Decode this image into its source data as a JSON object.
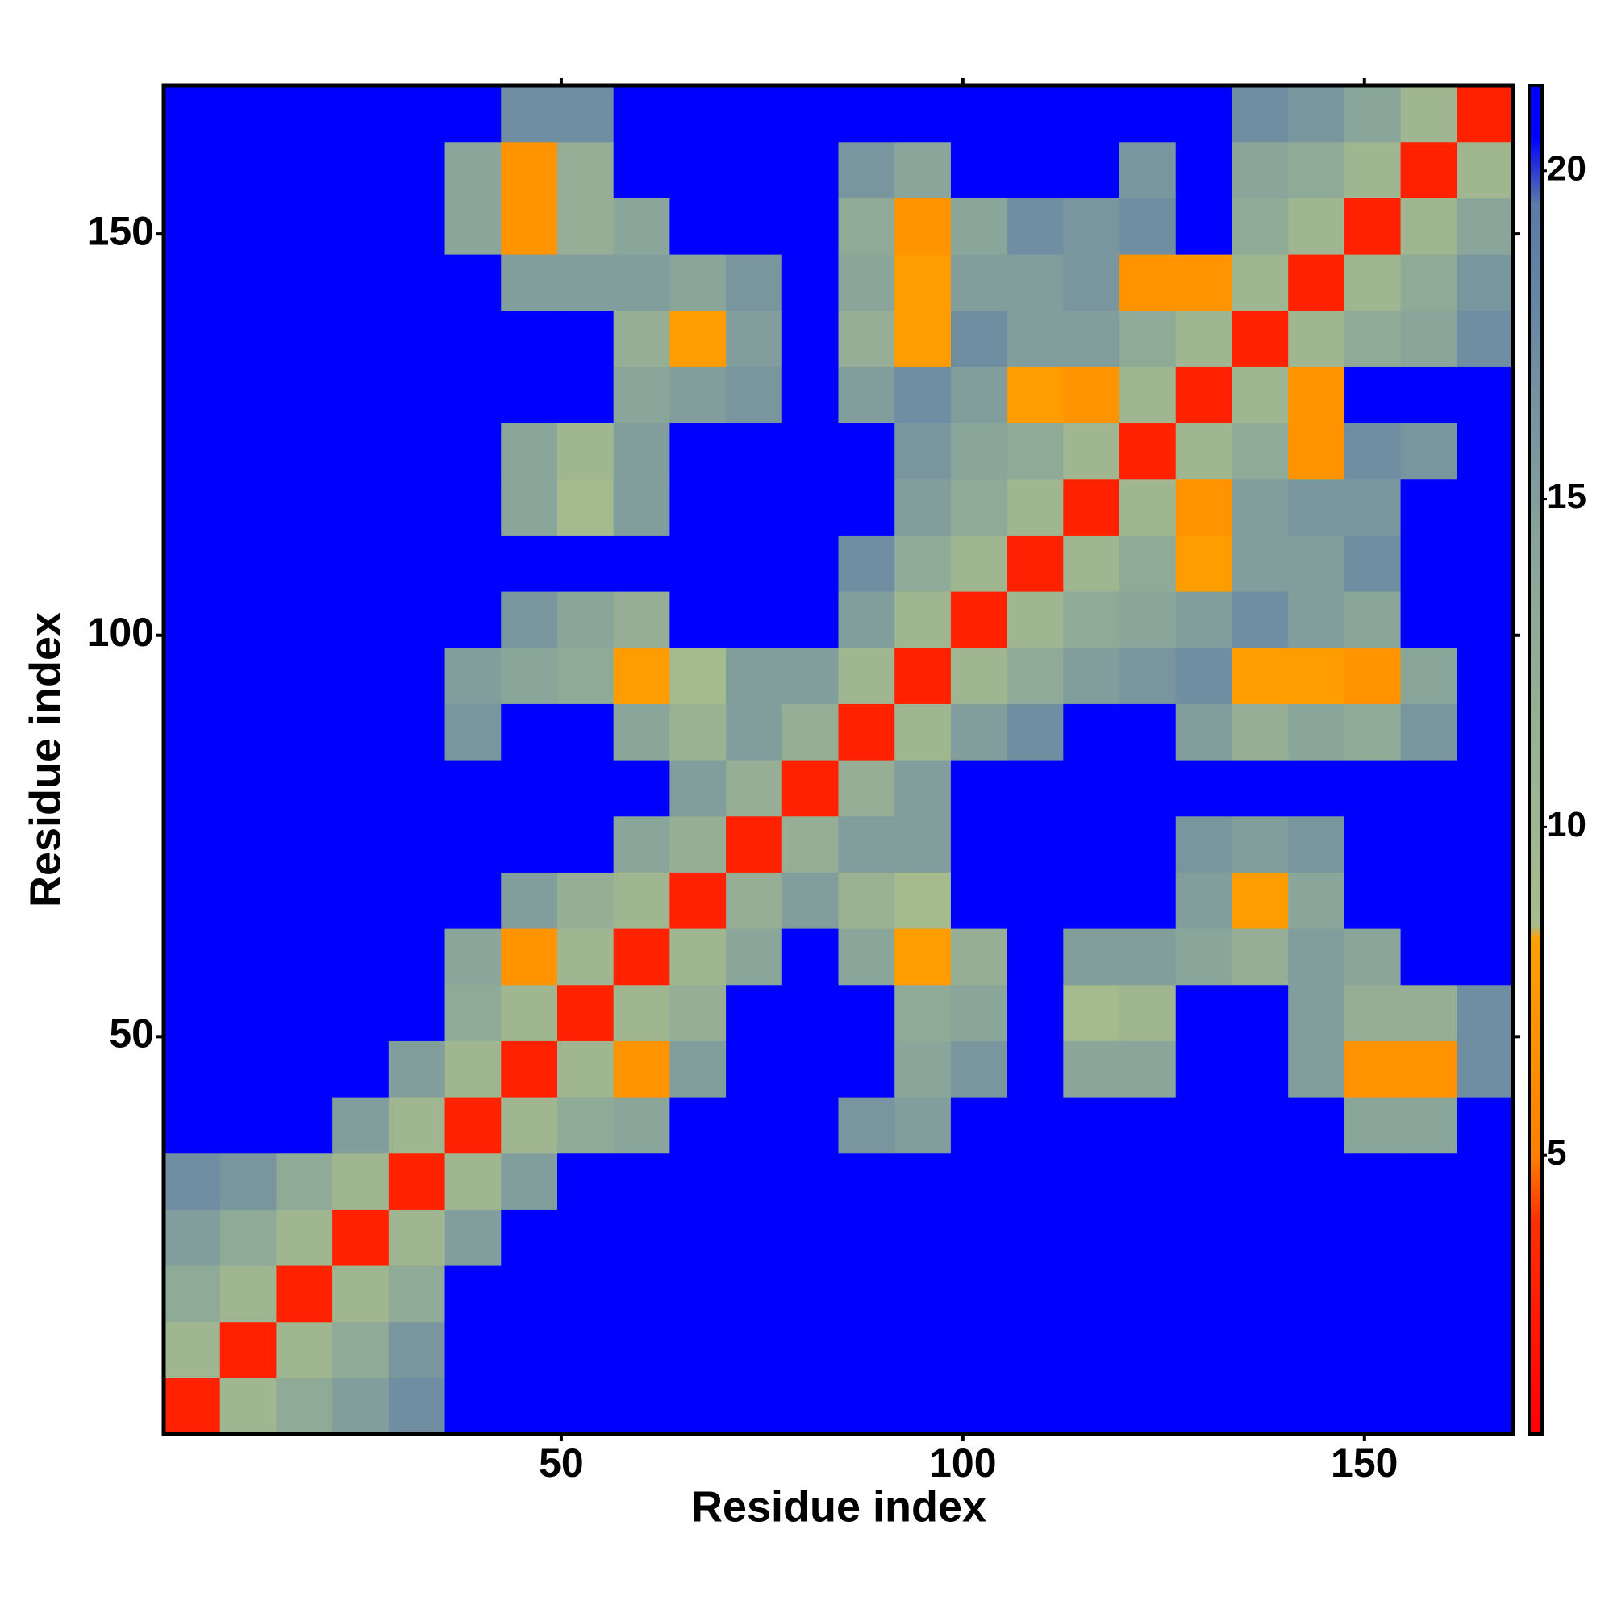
{
  "chart_data": {
    "type": "heatmap",
    "xlabel": "Residue index",
    "ylabel": "Residue index",
    "x": [
      4,
      11,
      18,
      25,
      32,
      39,
      46,
      53,
      60,
      67,
      74,
      81,
      88,
      95,
      102,
      109,
      116,
      123,
      130,
      137,
      144,
      151,
      158,
      165
    ],
    "y": [
      4,
      11,
      18,
      25,
      32,
      39,
      46,
      53,
      60,
      67,
      74,
      81,
      88,
      95,
      102,
      109,
      116,
      123,
      130,
      137,
      144,
      151,
      158,
      165
    ],
    "z": [
      [
        3,
        10,
        13,
        15,
        17,
        21,
        21,
        21,
        21,
        21,
        21,
        21,
        21,
        21,
        21,
        21,
        21,
        21,
        21,
        21,
        21,
        21,
        21,
        21
      ],
      [
        10,
        3,
        10,
        13,
        16,
        21,
        21,
        21,
        21,
        21,
        21,
        21,
        21,
        21,
        21,
        21,
        21,
        21,
        21,
        21,
        21,
        21,
        21,
        21
      ],
      [
        13,
        10,
        3,
        10,
        13,
        21,
        21,
        21,
        21,
        21,
        21,
        21,
        21,
        21,
        21,
        21,
        21,
        21,
        21,
        21,
        21,
        21,
        21,
        21
      ],
      [
        15,
        13,
        10,
        3,
        10,
        15,
        21,
        21,
        21,
        21,
        21,
        21,
        21,
        21,
        21,
        21,
        21,
        21,
        21,
        21,
        21,
        21,
        21,
        21
      ],
      [
        17,
        16,
        13,
        10,
        3,
        10,
        15,
        21,
        21,
        21,
        21,
        21,
        21,
        21,
        21,
        21,
        21,
        21,
        21,
        21,
        21,
        21,
        21,
        21
      ],
      [
        21,
        21,
        21,
        15,
        10,
        3,
        10,
        13,
        14,
        21,
        21,
        21,
        16,
        15,
        21,
        21,
        21,
        21,
        21,
        21,
        21,
        14,
        14,
        21
      ],
      [
        21,
        21,
        21,
        21,
        15,
        10,
        3,
        10,
        7,
        15,
        21,
        21,
        21,
        14,
        16,
        21,
        14,
        14,
        21,
        21,
        15,
        7,
        7,
        17
      ],
      [
        21,
        21,
        21,
        21,
        21,
        13,
        10,
        3,
        10,
        12,
        21,
        21,
        21,
        13,
        14,
        21,
        9,
        10,
        21,
        21,
        15,
        12,
        12,
        17
      ],
      [
        21,
        21,
        21,
        21,
        21,
        14,
        7,
        10,
        3,
        10,
        14,
        21,
        14,
        8,
        12,
        21,
        15,
        15,
        14,
        12,
        15,
        14,
        21,
        21
      ],
      [
        21,
        21,
        21,
        21,
        21,
        21,
        15,
        12,
        10,
        3,
        12,
        15,
        11,
        9,
        21,
        21,
        21,
        21,
        15,
        8,
        14,
        21,
        21,
        21
      ],
      [
        21,
        21,
        21,
        21,
        21,
        21,
        21,
        21,
        14,
        12,
        3,
        12,
        15,
        15,
        21,
        21,
        21,
        21,
        16,
        15,
        16,
        21,
        21,
        21
      ],
      [
        21,
        21,
        21,
        21,
        21,
        21,
        21,
        21,
        21,
        15,
        12,
        3,
        12,
        15,
        21,
        21,
        21,
        21,
        21,
        21,
        21,
        21,
        21,
        21
      ],
      [
        21,
        21,
        21,
        21,
        21,
        16,
        21,
        21,
        14,
        11,
        15,
        12,
        3,
        10,
        15,
        17,
        21,
        21,
        15,
        12,
        14,
        13,
        16,
        21
      ],
      [
        21,
        21,
        21,
        21,
        21,
        15,
        14,
        13,
        8,
        9,
        15,
        15,
        10,
        3,
        10,
        13,
        15,
        16,
        17,
        8,
        8,
        7,
        14,
        21
      ],
      [
        21,
        21,
        21,
        21,
        21,
        21,
        16,
        14,
        12,
        21,
        21,
        21,
        15,
        10,
        3,
        10,
        13,
        14,
        15,
        17,
        15,
        14,
        21,
        21
      ],
      [
        21,
        21,
        21,
        21,
        21,
        21,
        21,
        21,
        21,
        21,
        21,
        21,
        17,
        13,
        10,
        3,
        10,
        13,
        8,
        15,
        15,
        17,
        21,
        21
      ],
      [
        21,
        21,
        21,
        21,
        21,
        21,
        14,
        9,
        15,
        21,
        21,
        21,
        21,
        15,
        13,
        10,
        3,
        10,
        7,
        15,
        16,
        16,
        21,
        21
      ],
      [
        21,
        21,
        21,
        21,
        21,
        21,
        14,
        10,
        15,
        21,
        21,
        21,
        21,
        16,
        14,
        13,
        10,
        3,
        10,
        13,
        7,
        17,
        16,
        21
      ],
      [
        21,
        21,
        21,
        21,
        21,
        21,
        21,
        21,
        14,
        15,
        16,
        21,
        15,
        17,
        15,
        8,
        7,
        10,
        3,
        10,
        7,
        21,
        21,
        21
      ],
      [
        21,
        21,
        21,
        21,
        21,
        21,
        21,
        21,
        12,
        8,
        15,
        21,
        12,
        8,
        17,
        15,
        15,
        13,
        10,
        3,
        10,
        13,
        14,
        17
      ],
      [
        21,
        21,
        21,
        21,
        21,
        21,
        15,
        15,
        15,
        14,
        16,
        21,
        14,
        8,
        15,
        15,
        16,
        7,
        7,
        10,
        3,
        10,
        13,
        16
      ],
      [
        21,
        21,
        21,
        21,
        21,
        14,
        7,
        12,
        14,
        21,
        21,
        21,
        13,
        7,
        14,
        17,
        16,
        17,
        21,
        13,
        10,
        3,
        10,
        14
      ],
      [
        21,
        21,
        21,
        21,
        21,
        14,
        7,
        12,
        21,
        21,
        21,
        21,
        16,
        14,
        21,
        21,
        21,
        16,
        21,
        14,
        13,
        10,
        3,
        10
      ],
      [
        21,
        21,
        21,
        21,
        21,
        21,
        17,
        17,
        21,
        21,
        21,
        21,
        21,
        21,
        21,
        21,
        21,
        21,
        21,
        17,
        16,
        14,
        10,
        3
      ]
    ],
    "xlim": [
      0.5,
      168.5
    ],
    "ylim": [
      0.5,
      168.5
    ],
    "xticks": [
      50,
      100,
      150
    ],
    "yticks": [
      50,
      100,
      150
    ],
    "zlim": [
      0.75,
      21.3
    ],
    "colorbar_ticks": [
      5,
      10,
      15,
      20
    ],
    "colorscale": [
      [
        0.75,
        "#ff0000"
      ],
      [
        4,
        "#ff3000"
      ],
      [
        5,
        "#ff8000"
      ],
      [
        8.3,
        "#ffa000"
      ],
      [
        8.5,
        "#a8bc8c"
      ],
      [
        14,
        "#8aa69a"
      ],
      [
        19.5,
        "#5a7aa8"
      ],
      [
        20.5,
        "#0000ff"
      ]
    ]
  }
}
